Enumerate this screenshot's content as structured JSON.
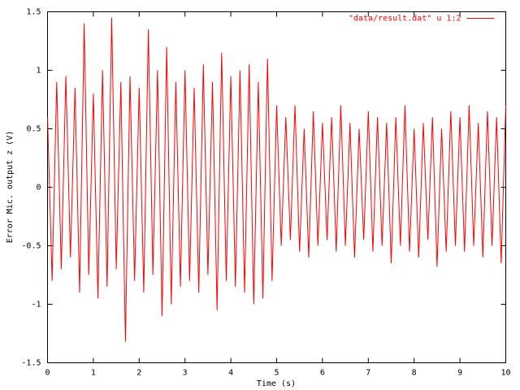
{
  "chart_data": {
    "type": "line",
    "xlabel": "Time (s)",
    "ylabel": "Error Mic. output z (V)",
    "xlim": [
      0,
      10
    ],
    "xticks": [
      0,
      1,
      2,
      3,
      4,
      5,
      6,
      7,
      8,
      9,
      10
    ],
    "ylim": [
      -1.5,
      1.5
    ],
    "yticks": [
      -1.5,
      -1,
      -0.5,
      0,
      0.5,
      1,
      1.5
    ],
    "grid": false,
    "legend": "upper-right",
    "x": [
      0,
      0.1,
      0.2,
      0.3,
      0.4,
      0.5,
      0.6,
      0.7,
      0.8,
      0.9,
      1,
      1.1,
      1.2,
      1.3,
      1.4,
      1.5,
      1.6,
      1.7,
      1.8,
      1.9,
      2,
      2.1,
      2.2,
      2.3,
      2.4,
      2.5,
      2.6,
      2.7,
      2.8,
      2.9,
      3,
      3.1,
      3.2,
      3.3,
      3.4,
      3.5,
      3.6,
      3.7,
      3.8,
      3.9,
      4,
      4.1,
      4.2,
      4.3,
      4.4,
      4.5,
      4.6,
      4.7,
      4.8,
      4.9,
      5,
      5.1,
      5.2,
      5.3,
      5.4,
      5.5,
      5.6,
      5.7,
      5.8,
      5.9,
      6,
      6.1,
      6.2,
      6.3,
      6.4,
      6.5,
      6.6,
      6.7,
      6.8,
      6.9,
      7,
      7.1,
      7.2,
      7.3,
      7.4,
      7.5,
      7.6,
      7.7,
      7.8,
      7.9,
      8,
      8.1,
      8.2,
      8.3,
      8.4,
      8.5,
      8.6,
      8.7,
      8.8,
      8.9,
      9,
      9.1,
      9.2,
      9.3,
      9.4,
      9.5,
      9.6,
      9.7,
      9.8,
      9.9,
      10
    ],
    "series": [
      {
        "name": "\"data/result.dat\" u 1:2",
        "color": "#ff0000",
        "values": [
          0.6,
          -0.8,
          0.9,
          -0.7,
          0.95,
          -0.6,
          0.85,
          -0.9,
          1.4,
          -0.75,
          0.8,
          -0.95,
          1.0,
          -0.85,
          1.45,
          -0.7,
          0.9,
          -1.32,
          0.95,
          -0.8,
          0.85,
          -0.9,
          1.35,
          -0.75,
          1.0,
          -1.1,
          1.2,
          -1.0,
          0.9,
          -0.85,
          1.0,
          -0.8,
          0.85,
          -0.9,
          1.05,
          -0.75,
          0.9,
          -1.05,
          1.15,
          -0.8,
          0.95,
          -0.85,
          1.0,
          -0.9,
          1.05,
          -1.0,
          0.9,
          -0.95,
          1.1,
          -0.8,
          0.7,
          -0.5,
          0.6,
          -0.45,
          0.7,
          -0.55,
          0.5,
          -0.6,
          0.65,
          -0.5,
          0.55,
          -0.45,
          0.6,
          -0.55,
          0.7,
          -0.5,
          0.55,
          -0.6,
          0.5,
          -0.45,
          0.65,
          -0.55,
          0.6,
          -0.5,
          0.55,
          -0.65,
          0.6,
          -0.5,
          0.7,
          -0.55,
          0.5,
          -0.6,
          0.55,
          -0.45,
          0.6,
          -0.68,
          0.5,
          -0.55,
          0.65,
          -0.5,
          0.6,
          -0.55,
          0.7,
          -0.5,
          0.55,
          -0.6,
          0.65,
          -0.5,
          0.6,
          -0.65,
          0.7
        ]
      }
    ]
  }
}
